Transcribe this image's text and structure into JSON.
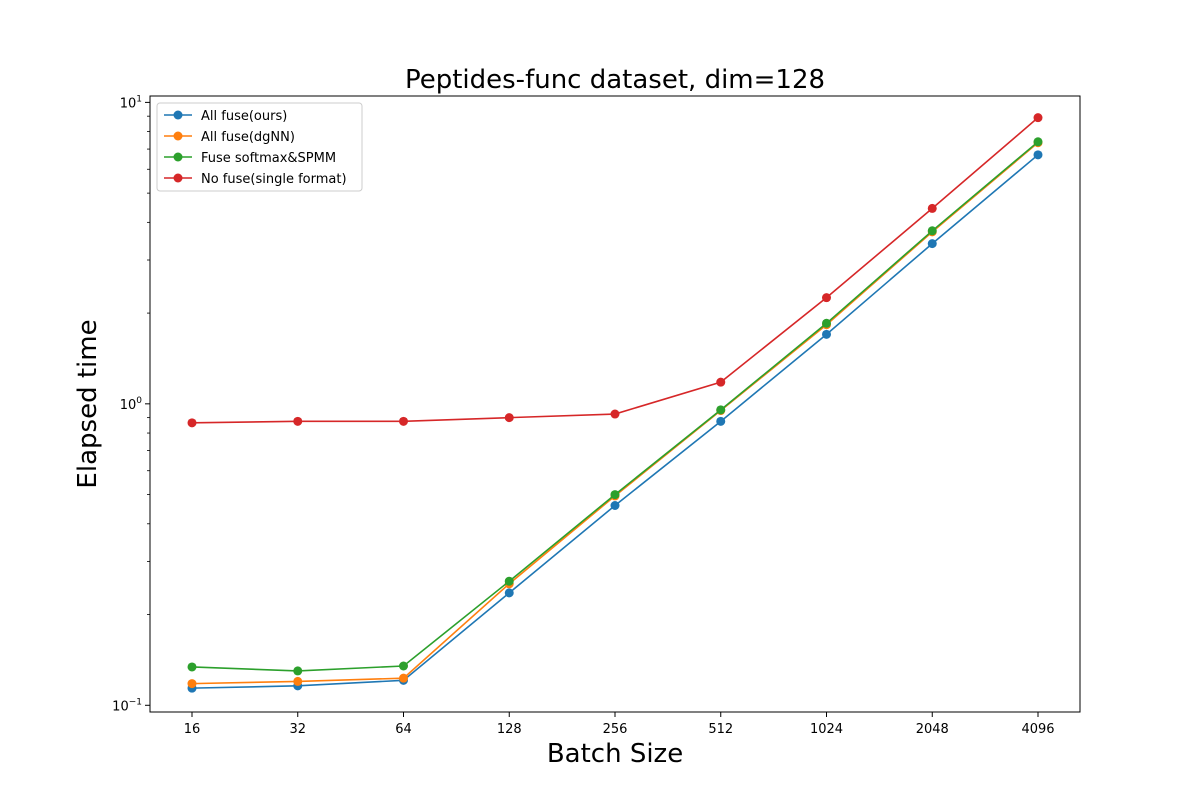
{
  "chart_data": {
    "type": "line",
    "title": "Peptides-func dataset, dim=128",
    "xlabel": "Batch Size",
    "ylabel": "Elapsed time",
    "y_scale": "log",
    "ylim": [
      0.095,
      10.5
    ],
    "grid": false,
    "legend_position": "top-left",
    "categories": [
      "16",
      "32",
      "64",
      "128",
      "256",
      "512",
      "1024",
      "2048",
      "4096"
    ],
    "y_ticks": [
      {
        "value": 0.1,
        "label": "10",
        "exp": "−1"
      },
      {
        "value": 1,
        "label": "10",
        "exp": "0"
      },
      {
        "value": 10,
        "label": "10",
        "exp": "1"
      }
    ],
    "series": [
      {
        "name": "All fuse(ours)",
        "color": "#1f77b4",
        "values": [
          0.114,
          0.116,
          0.121,
          0.236,
          0.46,
          0.875,
          1.7,
          3.4,
          6.7
        ]
      },
      {
        "name": "All fuse(dgNN)",
        "color": "#ff7f0e",
        "values": [
          0.118,
          0.12,
          0.123,
          0.253,
          0.495,
          0.95,
          1.83,
          3.72,
          7.35
        ]
      },
      {
        "name": "Fuse softmax&SPMM",
        "color": "#2ca02c",
        "values": [
          0.134,
          0.13,
          0.135,
          0.258,
          0.5,
          0.955,
          1.85,
          3.75,
          7.4
        ]
      },
      {
        "name": "No fuse(single format)",
        "color": "#d62728",
        "values": [
          0.865,
          0.875,
          0.875,
          0.9,
          0.925,
          1.18,
          2.25,
          4.45,
          8.9
        ]
      }
    ]
  }
}
